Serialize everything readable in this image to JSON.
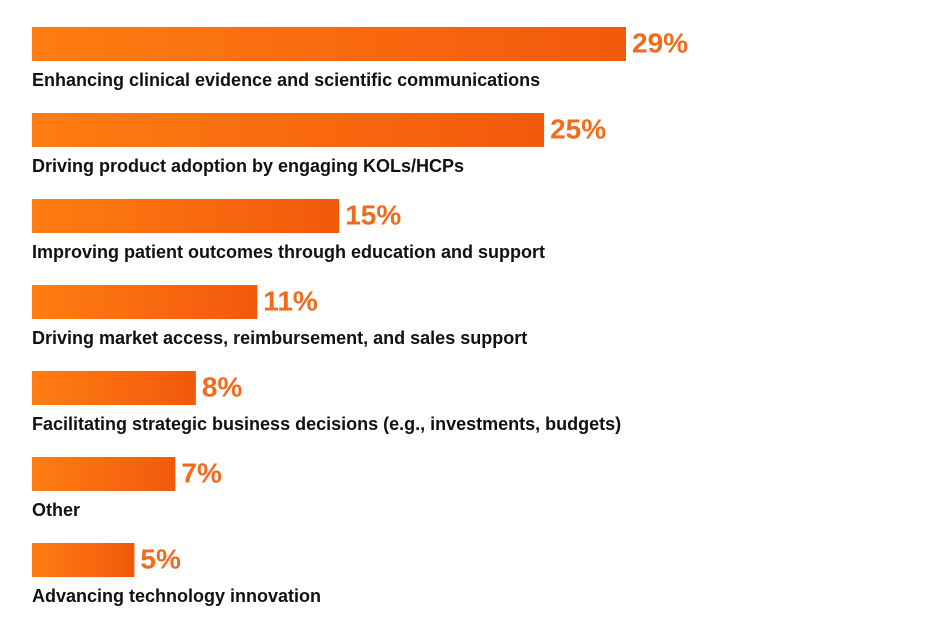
{
  "chart_data": {
    "type": "bar",
    "orientation": "horizontal",
    "categories": [
      "Enhancing clinical evidence and scientific communications",
      "Driving product adoption by engaging KOLs/HCPs",
      "Improving patient outcomes through education and support",
      "Driving market access, reimbursement, and sales support",
      "Facilitating strategic business decisions (e.g., investments, budgets)",
      "Other",
      "Advancing technology innovation"
    ],
    "values": [
      29,
      25,
      15,
      11,
      8,
      7,
      5
    ],
    "value_labels": [
      "29%",
      "25%",
      "15%",
      "11%",
      "8%",
      "7%",
      "5%"
    ],
    "color": "#f26b1d"
  }
}
